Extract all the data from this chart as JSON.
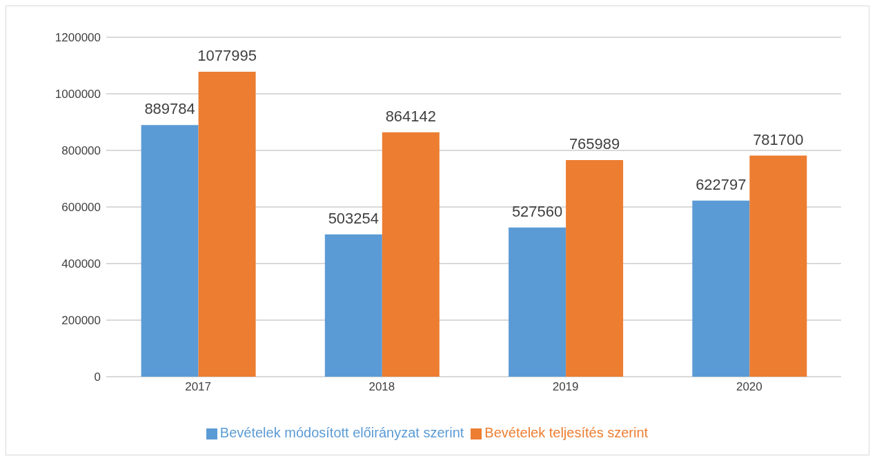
{
  "chart_data": {
    "type": "bar",
    "categories": [
      "2017",
      "2018",
      "2019",
      "2020"
    ],
    "series": [
      {
        "name": "Bevételek módosított előirányzat szerint",
        "color": "#5b9bd5",
        "values": [
          889784,
          503254,
          527560,
          622797
        ]
      },
      {
        "name": "Bevételek teljesítés szerint",
        "color": "#ed7d31",
        "values": [
          1077995,
          864142,
          765989,
          781700
        ]
      }
    ],
    "ylim": [
      0,
      1200000
    ],
    "yticks": [
      0,
      200000,
      400000,
      600000,
      800000,
      1000000,
      1200000
    ],
    "grid": "y",
    "legend": "bottom",
    "data_labels": true
  }
}
